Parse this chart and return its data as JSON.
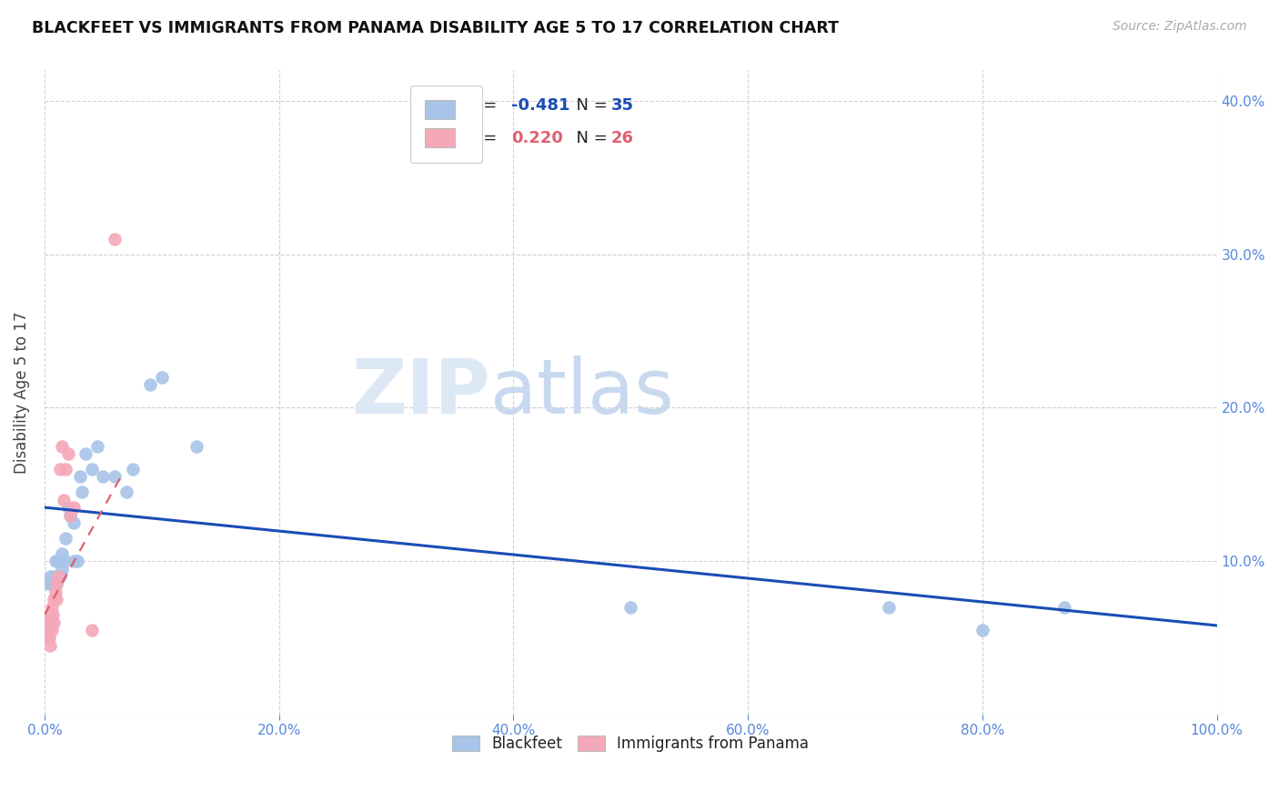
{
  "title": "BLACKFEET VS IMMIGRANTS FROM PANAMA DISABILITY AGE 5 TO 17 CORRELATION CHART",
  "source": "Source: ZipAtlas.com",
  "ylabel": "Disability Age 5 to 17",
  "xlim": [
    0,
    1.0
  ],
  "ylim": [
    0,
    0.42
  ],
  "xticks": [
    0.0,
    0.2,
    0.4,
    0.6,
    0.8,
    1.0
  ],
  "xticklabels": [
    "0.0%",
    "20.0%",
    "40.0%",
    "60.0%",
    "80.0%",
    "100.0%"
  ],
  "yticks": [
    0.0,
    0.1,
    0.2,
    0.3,
    0.4
  ],
  "yticklabels_right": [
    "",
    "10.0%",
    "20.0%",
    "30.0%",
    "40.0%"
  ],
  "legend1_r": "-0.481",
  "legend1_n": "35",
  "legend2_r": "0.220",
  "legend2_n": "26",
  "blue_color": "#a8c4e8",
  "pink_color": "#f4a8b8",
  "line_blue_color": "#1a4db5",
  "line_pink_color": "#e06070",
  "tick_color": "#5588dd",
  "watermark_color": "#dce8f5",
  "blackfeet_x": [
    0.003,
    0.005,
    0.006,
    0.007,
    0.008,
    0.009,
    0.01,
    0.01,
    0.012,
    0.013,
    0.015,
    0.015,
    0.017,
    0.018,
    0.02,
    0.022,
    0.025,
    0.025,
    0.028,
    0.03,
    0.032,
    0.035,
    0.04,
    0.045,
    0.05,
    0.06,
    0.07,
    0.075,
    0.09,
    0.1,
    0.13,
    0.5,
    0.72,
    0.8,
    0.87
  ],
  "blackfeet_y": [
    0.085,
    0.09,
    0.085,
    0.085,
    0.09,
    0.1,
    0.085,
    0.09,
    0.1,
    0.09,
    0.095,
    0.105,
    0.1,
    0.115,
    0.135,
    0.13,
    0.125,
    0.1,
    0.1,
    0.155,
    0.145,
    0.17,
    0.16,
    0.175,
    0.155,
    0.155,
    0.145,
    0.16,
    0.215,
    0.22,
    0.175,
    0.07,
    0.07,
    0.055,
    0.07
  ],
  "panama_x": [
    0.002,
    0.002,
    0.003,
    0.003,
    0.004,
    0.004,
    0.005,
    0.005,
    0.006,
    0.006,
    0.007,
    0.008,
    0.008,
    0.009,
    0.01,
    0.01,
    0.012,
    0.013,
    0.015,
    0.016,
    0.018,
    0.02,
    0.022,
    0.025,
    0.04,
    0.06
  ],
  "panama_y": [
    0.055,
    0.06,
    0.05,
    0.055,
    0.05,
    0.06,
    0.045,
    0.065,
    0.055,
    0.07,
    0.065,
    0.06,
    0.075,
    0.08,
    0.085,
    0.075,
    0.09,
    0.16,
    0.175,
    0.14,
    0.16,
    0.17,
    0.13,
    0.135,
    0.055,
    0.31
  ],
  "blue_trend_x": [
    0.0,
    1.0
  ],
  "blue_trend_y": [
    0.135,
    0.058
  ],
  "pink_trend_x": [
    0.0,
    0.065
  ],
  "pink_trend_y": [
    0.065,
    0.155
  ],
  "background_color": "#ffffff"
}
